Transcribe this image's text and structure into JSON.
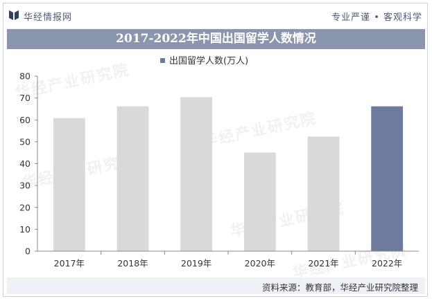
{
  "header": {
    "brand": "华经情报网",
    "tagline": "专业严谨 • 客观科学"
  },
  "watermark": "华经产业研究院",
  "colors": {
    "title_bar": "#8a96ad",
    "bar_default": "#d9d9d9",
    "bar_highlight": "#6d7c9e",
    "legend_marker": "#6d7c9e"
  },
  "footer": {
    "source": "资料来源：教育部，华经产业研究院整理"
  },
  "chart_data": {
    "type": "bar",
    "title": "2017-2022年中国出国留学人数情况",
    "categories": [
      "2017年",
      "2018年",
      "2019年",
      "2020年",
      "2021年",
      "2022年"
    ],
    "series": [
      {
        "name": "出国留学人数(万人)",
        "values": [
          60.8,
          66.2,
          70.4,
          45.1,
          52.4,
          66.2
        ]
      }
    ],
    "highlight_index": 5,
    "ylim": [
      0,
      80
    ],
    "yticks": [
      0,
      10,
      20,
      30,
      40,
      50,
      60,
      70,
      80
    ],
    "grid": false,
    "legend": "top-center"
  }
}
